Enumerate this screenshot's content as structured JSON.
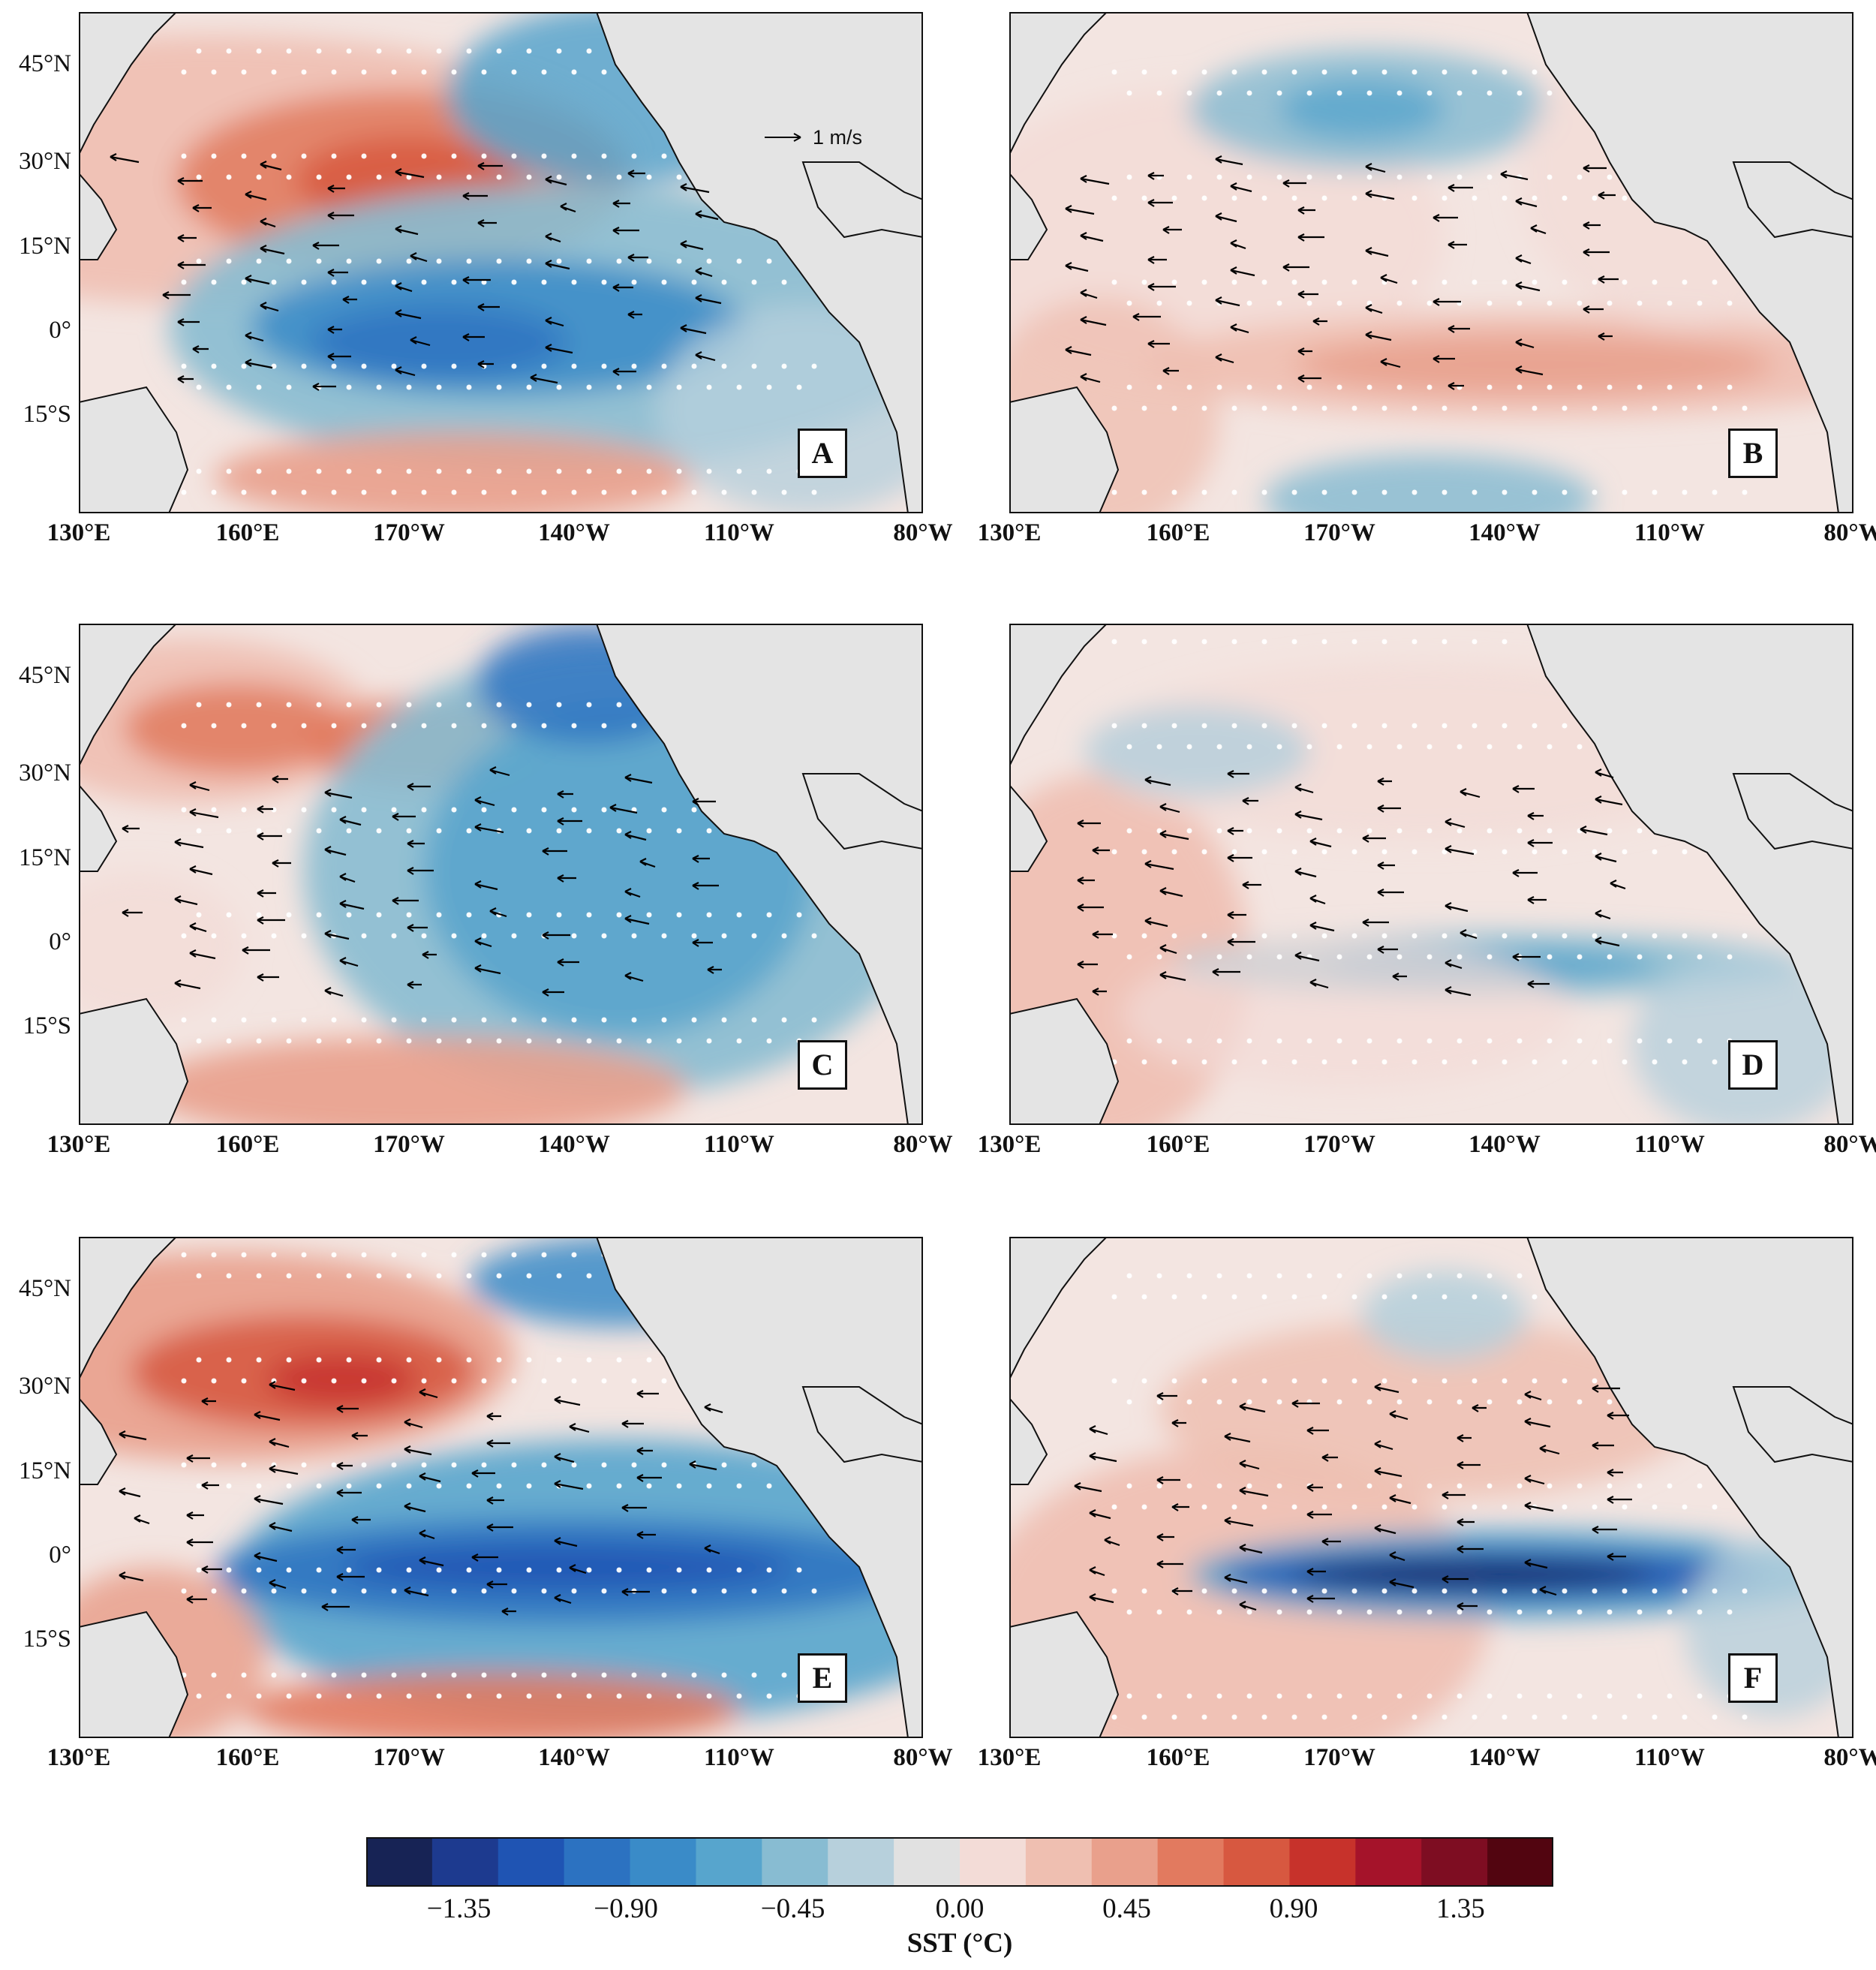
{
  "figure": {
    "lon_labels": [
      "130°E",
      "160°E",
      "170°W",
      "140°W",
      "110°W",
      "80°W"
    ],
    "lat_labels": [
      "45°N",
      "30°N",
      "15°N",
      "0°",
      "15°S"
    ],
    "reference_vector_label": "1 m/s",
    "panels": [
      {
        "id": "A",
        "label": "A",
        "show_lat_labels": true,
        "show_reference_vector": true
      },
      {
        "id": "B",
        "label": "B",
        "show_lat_labels": false,
        "show_reference_vector": false
      },
      {
        "id": "C",
        "label": "C",
        "show_lat_labels": true,
        "show_reference_vector": false
      },
      {
        "id": "D",
        "label": "D",
        "show_lat_labels": false,
        "show_reference_vector": false
      },
      {
        "id": "E",
        "label": "E",
        "show_lat_labels": true,
        "show_reference_vector": false
      },
      {
        "id": "F",
        "label": "F",
        "show_lat_labels": false,
        "show_reference_vector": false
      }
    ]
  },
  "colorbar": {
    "title": "SST (°C)",
    "tick_labels": [
      "−1.35",
      "−0.90",
      "−0.45",
      "0.00",
      "0.45",
      "0.90",
      "1.35"
    ],
    "tick_values": [
      -1.35,
      -0.9,
      -0.45,
      0.0,
      0.45,
      0.9,
      1.35
    ],
    "range": [
      -1.6,
      1.6
    ],
    "colors": [
      "#172355",
      "#1d3a8f",
      "#1f54b3",
      "#2c72c1",
      "#3a8bc8",
      "#57a5cd",
      "#88bcd2",
      "#b7d0dc",
      "#e1e1e1",
      "#f3dcd7",
      "#efbfb1",
      "#e9a08c",
      "#e27a5f",
      "#d75840",
      "#c7322b",
      "#a5132a",
      "#7e0d22",
      "#520510"
    ]
  }
}
